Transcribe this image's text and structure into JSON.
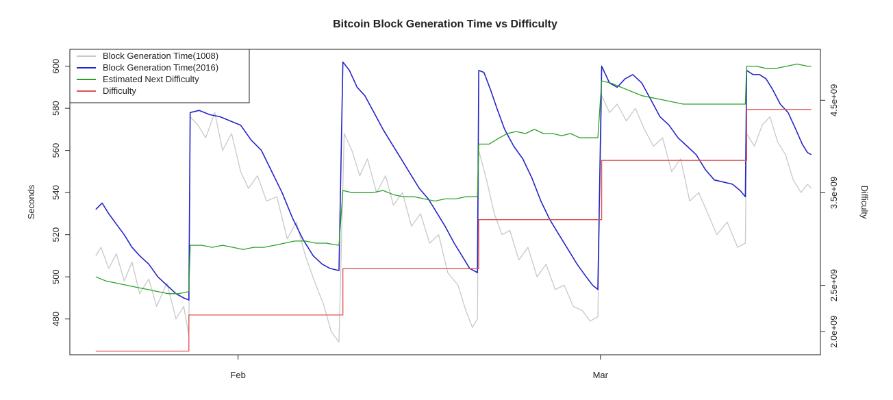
{
  "chart_data": {
    "type": "line",
    "title": "Bitcoin Block Generation Time vs Difficulty",
    "ylabel": "Seconds",
    "y2label": "Difficulty",
    "xlim": [
      0,
      58
    ],
    "ylim": [
      463,
      608
    ],
    "y2lim": [
      1750000000.0,
      5050000000.0
    ],
    "x_ticks": [
      {
        "x": 13,
        "label": "Feb"
      },
      {
        "x": 41,
        "label": "Mar"
      }
    ],
    "y_ticks": [
      480,
      500,
      520,
      540,
      560,
      580,
      600
    ],
    "y_tick_labels": [
      "480",
      "500",
      "520",
      "540",
      "560",
      "580",
      "600"
    ],
    "y2_ticks": [
      2000000000.0,
      2500000000.0,
      3500000000.0,
      4500000000.0
    ],
    "y2_tick_labels": [
      "2.0e+09",
      "2.5e+09",
      "3.5e+09",
      "4.5e+09"
    ],
    "legend_position": "top-left",
    "series": [
      {
        "name": "Block Generation Time(1008)",
        "color": "#c8c8c8",
        "axis": "left",
        "points": [
          [
            2,
            510
          ],
          [
            2.4,
            514
          ],
          [
            3,
            504
          ],
          [
            3.6,
            511
          ],
          [
            4.2,
            498
          ],
          [
            4.8,
            507
          ],
          [
            5.4,
            492
          ],
          [
            6.1,
            499
          ],
          [
            6.7,
            486
          ],
          [
            7.5,
            497
          ],
          [
            8.2,
            480
          ],
          [
            8.8,
            486
          ],
          [
            9.2,
            472
          ],
          [
            9.3,
            576
          ],
          [
            9.9,
            572
          ],
          [
            10.5,
            566
          ],
          [
            11.2,
            578
          ],
          [
            11.8,
            560
          ],
          [
            12.5,
            568
          ],
          [
            13.2,
            550
          ],
          [
            13.8,
            542
          ],
          [
            14.5,
            548
          ],
          [
            15.2,
            536
          ],
          [
            16,
            538
          ],
          [
            16.8,
            518
          ],
          [
            17.5,
            526
          ],
          [
            18.2,
            510
          ],
          [
            18.9,
            498
          ],
          [
            19.6,
            487
          ],
          [
            20.2,
            474
          ],
          [
            20.8,
            469
          ],
          [
            21.2,
            568
          ],
          [
            21.8,
            560
          ],
          [
            22.4,
            548
          ],
          [
            23,
            556
          ],
          [
            23.7,
            540
          ],
          [
            24.4,
            548
          ],
          [
            25,
            534
          ],
          [
            25.7,
            540
          ],
          [
            26.4,
            524
          ],
          [
            27.1,
            530
          ],
          [
            27.8,
            516
          ],
          [
            28.5,
            520
          ],
          [
            29.2,
            502
          ],
          [
            30,
            496
          ],
          [
            30.6,
            484
          ],
          [
            31.1,
            476
          ],
          [
            31.5,
            480
          ],
          [
            31.6,
            560
          ],
          [
            32.2,
            546
          ],
          [
            32.8,
            530
          ],
          [
            33.4,
            520
          ],
          [
            34,
            522
          ],
          [
            34.7,
            508
          ],
          [
            35.4,
            514
          ],
          [
            36.1,
            500
          ],
          [
            36.8,
            506
          ],
          [
            37.5,
            494
          ],
          [
            38.2,
            496
          ],
          [
            38.9,
            486
          ],
          [
            39.6,
            484
          ],
          [
            40.2,
            479
          ],
          [
            40.8,
            481
          ],
          [
            41.1,
            586
          ],
          [
            41.7,
            578
          ],
          [
            42.3,
            582
          ],
          [
            43,
            574
          ],
          [
            43.7,
            580
          ],
          [
            44.4,
            570
          ],
          [
            45.1,
            562
          ],
          [
            45.8,
            566
          ],
          [
            46.5,
            550
          ],
          [
            47.2,
            556
          ],
          [
            47.9,
            536
          ],
          [
            48.6,
            540
          ],
          [
            49.3,
            530
          ],
          [
            50,
            520
          ],
          [
            50.8,
            526
          ],
          [
            51.6,
            514
          ],
          [
            52.2,
            516
          ],
          [
            52.3,
            568
          ],
          [
            52.9,
            562
          ],
          [
            53.5,
            572
          ],
          [
            54.1,
            576
          ],
          [
            54.7,
            564
          ],
          [
            55.3,
            558
          ],
          [
            55.9,
            546
          ],
          [
            56.5,
            540
          ],
          [
            57,
            544
          ],
          [
            57.3,
            542
          ]
        ]
      },
      {
        "name": "Block Generation Time(2016)",
        "color": "#2424c8",
        "axis": "left",
        "points": [
          [
            2,
            532
          ],
          [
            2.5,
            535
          ],
          [
            3,
            530
          ],
          [
            3.6,
            525
          ],
          [
            4.2,
            520
          ],
          [
            4.8,
            514
          ],
          [
            5.4,
            510
          ],
          [
            6.1,
            506
          ],
          [
            6.8,
            500
          ],
          [
            7.5,
            496
          ],
          [
            8.2,
            492
          ],
          [
            8.8,
            490
          ],
          [
            9.2,
            489
          ],
          [
            9.3,
            578
          ],
          [
            10,
            579
          ],
          [
            10.8,
            577
          ],
          [
            11.6,
            576
          ],
          [
            12.4,
            574
          ],
          [
            13.2,
            572
          ],
          [
            14,
            565
          ],
          [
            14.8,
            560
          ],
          [
            15.6,
            550
          ],
          [
            16.4,
            540
          ],
          [
            17.2,
            528
          ],
          [
            18,
            518
          ],
          [
            18.8,
            510
          ],
          [
            19.5,
            506
          ],
          [
            20.1,
            504
          ],
          [
            20.8,
            503
          ],
          [
            21.1,
            602
          ],
          [
            21.6,
            598
          ],
          [
            22.2,
            590
          ],
          [
            22.8,
            586
          ],
          [
            23.5,
            578
          ],
          [
            24.2,
            570
          ],
          [
            24.9,
            563
          ],
          [
            25.6,
            556
          ],
          [
            26.3,
            549
          ],
          [
            27,
            542
          ],
          [
            27.7,
            537
          ],
          [
            28.4,
            530
          ],
          [
            29,
            524
          ],
          [
            29.7,
            516
          ],
          [
            30.3,
            510
          ],
          [
            30.9,
            504
          ],
          [
            31.5,
            502
          ],
          [
            31.6,
            598
          ],
          [
            32,
            597
          ],
          [
            32.5,
            589
          ],
          [
            33,
            580
          ],
          [
            33.6,
            570
          ],
          [
            34.3,
            562
          ],
          [
            35,
            556
          ],
          [
            35.7,
            547
          ],
          [
            36.4,
            536
          ],
          [
            37.1,
            527
          ],
          [
            37.8,
            520
          ],
          [
            38.5,
            513
          ],
          [
            39.2,
            506
          ],
          [
            39.9,
            500
          ],
          [
            40.4,
            496
          ],
          [
            40.8,
            494
          ],
          [
            41.1,
            600
          ],
          [
            41.7,
            592
          ],
          [
            42.3,
            590
          ],
          [
            42.9,
            594
          ],
          [
            43.5,
            596
          ],
          [
            44.2,
            592
          ],
          [
            44.9,
            584
          ],
          [
            45.6,
            576
          ],
          [
            46.3,
            572
          ],
          [
            47,
            566
          ],
          [
            47.7,
            562
          ],
          [
            48.4,
            558
          ],
          [
            49.1,
            551
          ],
          [
            49.8,
            546
          ],
          [
            50.5,
            545
          ],
          [
            51.2,
            544
          ],
          [
            51.8,
            541
          ],
          [
            52.2,
            538
          ],
          [
            52.3,
            598
          ],
          [
            52.8,
            596
          ],
          [
            53.3,
            596
          ],
          [
            53.8,
            594
          ],
          [
            54.3,
            589
          ],
          [
            54.9,
            582
          ],
          [
            55.5,
            578
          ],
          [
            56.1,
            570
          ],
          [
            56.6,
            563
          ],
          [
            57,
            559
          ],
          [
            57.3,
            558
          ]
        ]
      },
      {
        "name": "Estimated Next Difficulty",
        "color": "#28a028",
        "axis": "left",
        "points": [
          [
            2,
            500
          ],
          [
            2.8,
            498
          ],
          [
            3.6,
            497
          ],
          [
            4.4,
            496
          ],
          [
            5.2,
            495
          ],
          [
            6,
            494
          ],
          [
            6.8,
            493
          ],
          [
            7.6,
            492
          ],
          [
            8.4,
            492
          ],
          [
            9.2,
            493
          ],
          [
            9.3,
            515
          ],
          [
            10.2,
            515
          ],
          [
            11,
            514
          ],
          [
            11.8,
            515
          ],
          [
            12.6,
            514
          ],
          [
            13.4,
            513
          ],
          [
            14.2,
            514
          ],
          [
            15,
            514
          ],
          [
            15.8,
            515
          ],
          [
            16.6,
            516
          ],
          [
            17.4,
            517
          ],
          [
            18.2,
            517
          ],
          [
            19,
            516
          ],
          [
            19.8,
            516
          ],
          [
            20.8,
            515
          ],
          [
            21.1,
            541
          ],
          [
            21.8,
            540
          ],
          [
            22.6,
            540
          ],
          [
            23.4,
            540
          ],
          [
            24.2,
            541
          ],
          [
            25,
            539
          ],
          [
            25.8,
            538
          ],
          [
            26.6,
            538
          ],
          [
            27.4,
            537
          ],
          [
            28.2,
            536
          ],
          [
            29,
            537
          ],
          [
            29.8,
            537
          ],
          [
            30.6,
            538
          ],
          [
            31.5,
            538
          ],
          [
            31.6,
            563
          ],
          [
            32.4,
            563
          ],
          [
            33.2,
            566
          ],
          [
            33.8,
            568
          ],
          [
            34.5,
            569
          ],
          [
            35.2,
            568
          ],
          [
            35.9,
            570
          ],
          [
            36.6,
            568
          ],
          [
            37.3,
            568
          ],
          [
            38,
            567
          ],
          [
            38.7,
            568
          ],
          [
            39.4,
            566
          ],
          [
            40.1,
            566
          ],
          [
            40.8,
            566
          ],
          [
            41.1,
            593
          ],
          [
            41.8,
            592
          ],
          [
            42.6,
            590
          ],
          [
            43.4,
            588
          ],
          [
            44.2,
            586
          ],
          [
            45,
            585
          ],
          [
            45.8,
            584
          ],
          [
            46.6,
            583
          ],
          [
            47.4,
            582
          ],
          [
            48.2,
            582
          ],
          [
            49,
            582
          ],
          [
            49.8,
            582
          ],
          [
            50.6,
            582
          ],
          [
            51.4,
            582
          ],
          [
            52.2,
            582
          ],
          [
            52.3,
            600
          ],
          [
            53,
            600
          ],
          [
            53.8,
            599
          ],
          [
            54.6,
            599
          ],
          [
            55.4,
            600
          ],
          [
            56.2,
            601
          ],
          [
            57,
            600
          ],
          [
            57.3,
            600
          ]
        ]
      },
      {
        "name": "Difficulty",
        "color": "#e05050",
        "axis": "right",
        "points": [
          [
            2,
            1790000000.0
          ],
          [
            9.2,
            1790000000.0
          ],
          [
            9.2,
            2180000000.0
          ],
          [
            21.1,
            2180000000.0
          ],
          [
            21.1,
            2680000000.0
          ],
          [
            31.6,
            2680000000.0
          ],
          [
            31.6,
            3210000000.0
          ],
          [
            41.1,
            3210000000.0
          ],
          [
            41.1,
            3850000000.0
          ],
          [
            52.3,
            3850000000.0
          ],
          [
            52.3,
            4400000000.0
          ],
          [
            57.3,
            4400000000.0
          ]
        ]
      }
    ]
  }
}
